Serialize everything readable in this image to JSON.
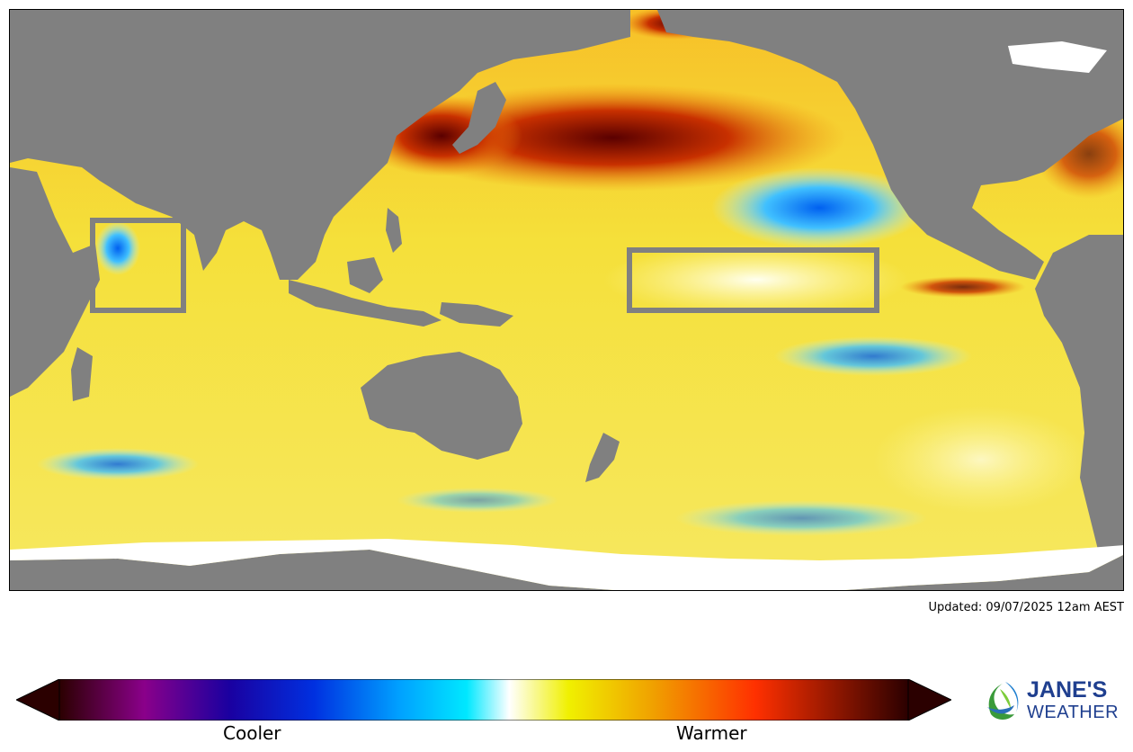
{
  "map": {
    "legend_colors": [
      "#2b0000",
      "#8a008a",
      "#1a00a0",
      "#0030e0",
      "#00a0ff",
      "#00e8ff",
      "#ffffff",
      "#f0f000",
      "#f0a000",
      "#ff3000",
      "#2b0000"
    ],
    "land_color": "#808080",
    "ice_color": "#ffffff"
  },
  "footer": {
    "updated": "Updated: 09/07/2025 12am AEST"
  },
  "colorbar": {
    "cooler_label": "Cooler",
    "warmer_label": "Warmer"
  },
  "logo": {
    "name": "JANE'S",
    "sub": "WEATHER"
  }
}
